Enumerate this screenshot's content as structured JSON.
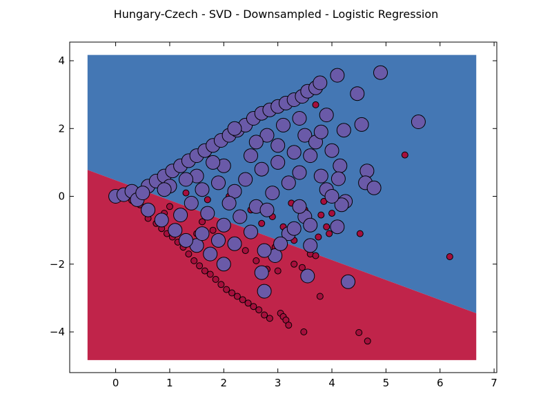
{
  "chart_data": {
    "type": "scatter",
    "title": "Hungary-Czech - SVD - Downsampled - Logistic Regression",
    "xlabel": "",
    "ylabel": "",
    "xlim": [
      -0.85,
      7.05
    ],
    "ylim": [
      -5.2,
      4.55
    ],
    "x_ticks": [
      0,
      1,
      2,
      3,
      4,
      5,
      6,
      7
    ],
    "x_tick_labels": [
      "0",
      "1",
      "2",
      "3",
      "4",
      "5",
      "6",
      "7"
    ],
    "y_ticks": [
      4,
      2,
      0,
      -2,
      -4
    ],
    "y_tick_labels": [
      "4",
      "2",
      "0",
      "−2",
      "−4"
    ],
    "grid": false,
    "legend": "none",
    "decision_region": {
      "x_range": [
        -0.52,
        6.67
      ],
      "y_range": [
        -4.83,
        4.17
      ],
      "boundary": [
        [
          -0.52,
          0.78
        ],
        [
          6.67,
          -3.45
        ]
      ],
      "class_above_color": "#4477b4",
      "class_below_color": "#c0244a"
    },
    "series": [
      {
        "color": "#a50f3c",
        "marker_size": "small",
        "points": [
          [
            0.05,
            -0.05
          ],
          [
            0.2,
            0.02
          ],
          [
            0.3,
            -0.12
          ],
          [
            0.45,
            -0.25
          ],
          [
            0.55,
            -0.4
          ],
          [
            0.6,
            -0.65
          ],
          [
            0.75,
            -0.8
          ],
          [
            0.85,
            -0.95
          ],
          [
            0.95,
            -1.1
          ],
          [
            1.05,
            -1.2
          ],
          [
            1.15,
            -1.35
          ],
          [
            1.25,
            -1.5
          ],
          [
            1.35,
            -1.7
          ],
          [
            1.45,
            -1.9
          ],
          [
            1.55,
            -2.05
          ],
          [
            1.65,
            -2.2
          ],
          [
            1.75,
            -2.3
          ],
          [
            1.85,
            -2.45
          ],
          [
            1.95,
            -2.6
          ],
          [
            2.05,
            -2.75
          ],
          [
            2.15,
            -2.85
          ],
          [
            2.25,
            -2.95
          ],
          [
            2.35,
            -3.05
          ],
          [
            2.45,
            -3.15
          ],
          [
            2.55,
            -3.25
          ],
          [
            2.65,
            -3.35
          ],
          [
            2.75,
            -3.5
          ],
          [
            2.85,
            -3.6
          ],
          [
            3.05,
            -3.45
          ],
          [
            3.1,
            -3.55
          ],
          [
            3.15,
            -3.65
          ],
          [
            3.2,
            -3.8
          ],
          [
            2.0,
            -0.9
          ],
          [
            2.2,
            -1.3
          ],
          [
            2.4,
            -1.6
          ],
          [
            2.6,
            -1.9
          ],
          [
            2.8,
            -2.15
          ],
          [
            3.0,
            -2.2
          ],
          [
            3.3,
            -2.0
          ],
          [
            3.45,
            -2.1
          ],
          [
            3.6,
            -1.7
          ],
          [
            3.7,
            -1.75
          ],
          [
            3.75,
            -1.2
          ],
          [
            3.9,
            -0.9
          ],
          [
            3.95,
            -1.1
          ],
          [
            3.8,
            -0.55
          ],
          [
            4.0,
            -0.5
          ],
          [
            3.7,
            2.7
          ],
          [
            3.85,
            -0.15
          ],
          [
            4.52,
            -1.1
          ],
          [
            5.35,
            1.22
          ],
          [
            6.18,
            -1.78
          ],
          [
            3.48,
            -4.0
          ],
          [
            4.5,
            -4.02
          ],
          [
            4.66,
            -4.27
          ],
          [
            3.78,
            -2.95
          ],
          [
            1.0,
            -0.3
          ],
          [
            1.2,
            -0.6
          ],
          [
            1.4,
            -0.2
          ],
          [
            1.6,
            -0.75
          ],
          [
            1.8,
            -1.0
          ],
          [
            2.5,
            -0.4
          ],
          [
            2.7,
            -0.8
          ],
          [
            2.9,
            -0.6
          ],
          [
            3.1,
            -0.9
          ],
          [
            3.3,
            -1.3
          ],
          [
            3.5,
            -0.4
          ],
          [
            1.3,
            0.1
          ],
          [
            1.7,
            -0.1
          ],
          [
            2.1,
            0.0
          ],
          [
            2.3,
            -0.5
          ],
          [
            0.9,
            -0.5
          ],
          [
            1.1,
            -0.9
          ],
          [
            1.5,
            -1.1
          ],
          [
            2.95,
            -1.5
          ],
          [
            3.25,
            -0.2
          ]
        ]
      },
      {
        "color": "#6a5aa8",
        "marker_size": "large",
        "points": [
          [
            0.0,
            0.0
          ],
          [
            0.15,
            0.05
          ],
          [
            0.3,
            0.15
          ],
          [
            0.4,
            -0.1
          ],
          [
            0.6,
            0.3
          ],
          [
            0.75,
            0.45
          ],
          [
            0.9,
            0.6
          ],
          [
            1.05,
            0.75
          ],
          [
            1.2,
            0.9
          ],
          [
            1.35,
            1.05
          ],
          [
            1.5,
            1.2
          ],
          [
            1.65,
            1.35
          ],
          [
            1.8,
            1.5
          ],
          [
            1.95,
            1.65
          ],
          [
            2.1,
            1.8
          ],
          [
            2.25,
            1.95
          ],
          [
            2.4,
            2.1
          ],
          [
            2.55,
            2.3
          ],
          [
            2.7,
            2.45
          ],
          [
            2.85,
            2.55
          ],
          [
            3.0,
            2.65
          ],
          [
            3.15,
            2.75
          ],
          [
            3.3,
            2.85
          ],
          [
            3.45,
            2.95
          ],
          [
            3.55,
            3.1
          ],
          [
            3.7,
            3.2
          ],
          [
            3.78,
            3.35
          ],
          [
            4.1,
            3.57
          ],
          [
            4.9,
            3.65
          ],
          [
            4.47,
            3.03
          ],
          [
            4.55,
            2.12
          ],
          [
            5.6,
            2.2
          ],
          [
            4.22,
            1.95
          ],
          [
            4.65,
            0.75
          ],
          [
            4.62,
            0.4
          ],
          [
            4.78,
            0.25
          ],
          [
            4.15,
            0.9
          ],
          [
            4.12,
            0.52
          ],
          [
            4.25,
            -0.15
          ],
          [
            4.18,
            -0.25
          ],
          [
            4.1,
            -0.9
          ],
          [
            4.3,
            -2.52
          ],
          [
            3.55,
            -2.35
          ],
          [
            3.6,
            -1.45
          ],
          [
            3.2,
            -1.1
          ],
          [
            2.95,
            -1.75
          ],
          [
            2.75,
            -1.6
          ],
          [
            2.7,
            -2.25
          ],
          [
            2.75,
            -2.8
          ],
          [
            2.0,
            -2.0
          ],
          [
            1.75,
            -1.7
          ],
          [
            1.5,
            -1.45
          ],
          [
            1.3,
            -1.3
          ],
          [
            1.1,
            -1.0
          ],
          [
            0.85,
            -0.7
          ],
          [
            0.6,
            -0.4
          ],
          [
            0.5,
            0.1
          ],
          [
            1.0,
            0.3
          ],
          [
            1.5,
            0.6
          ],
          [
            2.0,
            0.9
          ],
          [
            2.5,
            1.2
          ],
          [
            3.0,
            1.5
          ],
          [
            3.5,
            1.8
          ],
          [
            3.9,
            2.4
          ],
          [
            3.7,
            1.6
          ],
          [
            3.6,
            1.2
          ],
          [
            3.4,
            0.7
          ],
          [
            3.2,
            0.4
          ],
          [
            2.9,
            0.1
          ],
          [
            2.6,
            -0.3
          ],
          [
            2.3,
            -0.6
          ],
          [
            2.0,
            -0.85
          ],
          [
            1.7,
            -0.5
          ],
          [
            1.4,
            -0.2
          ],
          [
            1.6,
            0.2
          ],
          [
            1.9,
            0.4
          ],
          [
            2.2,
            0.15
          ],
          [
            2.4,
            0.5
          ],
          [
            2.7,
            0.8
          ],
          [
            3.0,
            1.0
          ],
          [
            3.3,
            1.3
          ],
          [
            3.8,
            0.6
          ],
          [
            3.9,
            0.2
          ],
          [
            3.5,
            -0.6
          ],
          [
            3.3,
            -0.95
          ],
          [
            3.05,
            -1.4
          ],
          [
            2.5,
            -1.05
          ],
          [
            2.2,
            -1.4
          ],
          [
            1.9,
            -1.3
          ],
          [
            1.6,
            -1.1
          ],
          [
            1.2,
            -0.55
          ],
          [
            0.9,
            0.2
          ],
          [
            2.8,
            1.8
          ],
          [
            3.1,
            2.1
          ],
          [
            3.4,
            2.3
          ],
          [
            2.2,
            2.0
          ],
          [
            2.6,
            1.6
          ],
          [
            1.8,
            1.0
          ],
          [
            4.0,
            1.35
          ],
          [
            3.8,
            1.9
          ],
          [
            4.0,
            0.0
          ],
          [
            3.4,
            -0.3
          ],
          [
            2.8,
            -0.4
          ],
          [
            2.1,
            -0.2
          ],
          [
            1.3,
            0.5
          ],
          [
            3.6,
            -0.85
          ]
        ]
      }
    ]
  }
}
